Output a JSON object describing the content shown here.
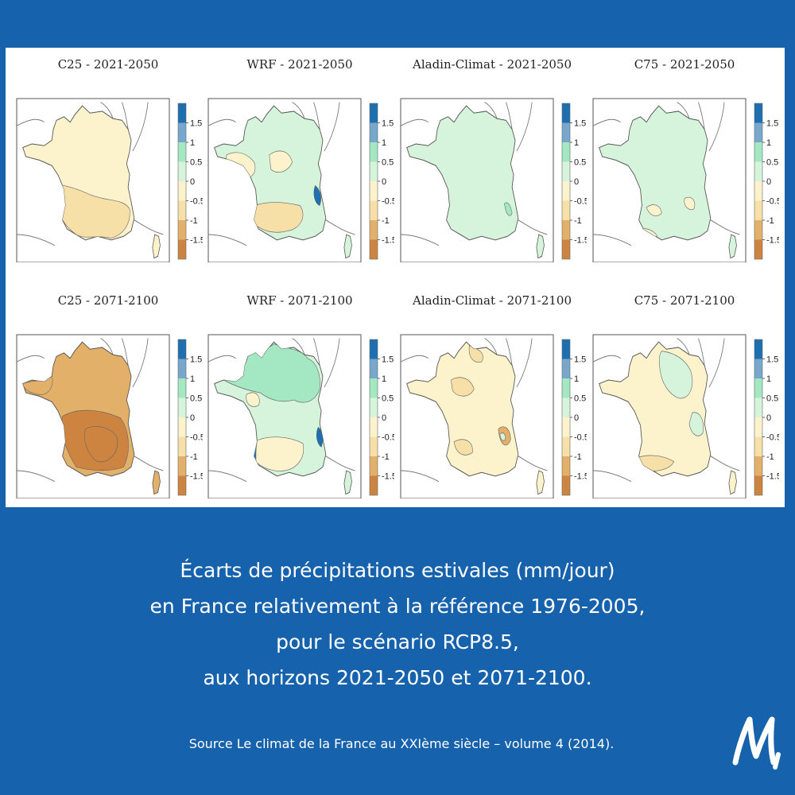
{
  "colors": {
    "background": "#1762ac",
    "panel": "#ffffff",
    "levels": [
      "#cd8440",
      "#e3b069",
      "#f6e0a8",
      "#fcf3cc",
      "#d6f4dc",
      "#a3e8c2",
      "#77a8cc",
      "#1d6fb0"
    ]
  },
  "legend": {
    "ticks": [
      "1.5",
      "1",
      "0.5",
      "0",
      "-0.5",
      "-1",
      "-1.5"
    ]
  },
  "maps": [
    {
      "title": "C25 - 2021-2050",
      "base_level": 3,
      "zones": [
        {
          "level": 2
        }
      ],
      "legend_ticks": [
        "1.5",
        "1",
        "0.5",
        "0",
        "-0.5",
        "-1",
        "-1.5"
      ]
    },
    {
      "title": "WRF - 2021-2050",
      "base_level": 4,
      "zones": [
        {
          "level": 3
        },
        {
          "level": 2
        },
        {
          "level": 7
        }
      ],
      "legend_ticks": [
        "1.5",
        "1",
        "0.5",
        "0",
        "-0.5",
        "-1",
        "-1.5"
      ]
    },
    {
      "title": "Aladin-Climat - 2021-2050",
      "base_level": 4,
      "zones": [
        {
          "level": 5
        }
      ],
      "legend_ticks": [
        "1.5",
        "1",
        "0.5",
        "0",
        "-0.5",
        "-1",
        "-1.5"
      ]
    },
    {
      "title": "C75 - 2021-2050",
      "base_level": 4,
      "zones": [
        {
          "level": 3
        }
      ],
      "legend_ticks": [
        "1.5",
        "1",
        "0.5",
        "0",
        "-0.5",
        "-1",
        "-1.5"
      ]
    },
    {
      "title": "C25 - 2071-2100",
      "base_level": 1,
      "zones": [
        {
          "level": 0
        },
        {
          "level": 0
        },
        {
          "level": 1
        }
      ],
      "legend_ticks": [
        "1.5",
        "1",
        "0.5",
        "0",
        "-0.5",
        "-1",
        "-1.5"
      ]
    },
    {
      "title": "WRF - 2071-2100",
      "base_level": 4,
      "zones": [
        {
          "level": 3
        },
        {
          "level": 7
        },
        {
          "level": 7
        },
        {
          "level": 5
        }
      ],
      "legend_ticks": [
        "1.5",
        "1",
        "0.5",
        "0",
        "-0.5",
        "-1",
        "-1.5"
      ]
    },
    {
      "title": "Aladin-Climat - 2071-2100",
      "base_level": 3,
      "zones": [
        {
          "level": 2
        },
        {
          "level": 1
        },
        {
          "level": 4
        }
      ],
      "legend_ticks": [
        "1.5",
        "1",
        "0.5",
        "0",
        "-0.5",
        "-1",
        "-1.5"
      ]
    },
    {
      "title": "C75 - 2071-2100",
      "base_level": 3,
      "zones": [
        {
          "level": 4
        },
        {
          "level": 4
        },
        {
          "level": 2
        }
      ],
      "legend_ticks": [
        "1.5",
        "1",
        "0.5",
        "0",
        "-0.5",
        "-1",
        "-1.5"
      ]
    }
  ],
  "caption": {
    "lines": [
      "Écarts de précipitations estivales (mm/jour)",
      "en France relativement à la référence 1976-2005,",
      "pour le scénario RCP8.5,",
      "aux horizons 2021-2050 et 2071-2100."
    ]
  },
  "source": "Source Le climat de la France au XXIème siècle – volume 4 (2014).",
  "logo": {
    "icon": "m-logo-icon"
  }
}
